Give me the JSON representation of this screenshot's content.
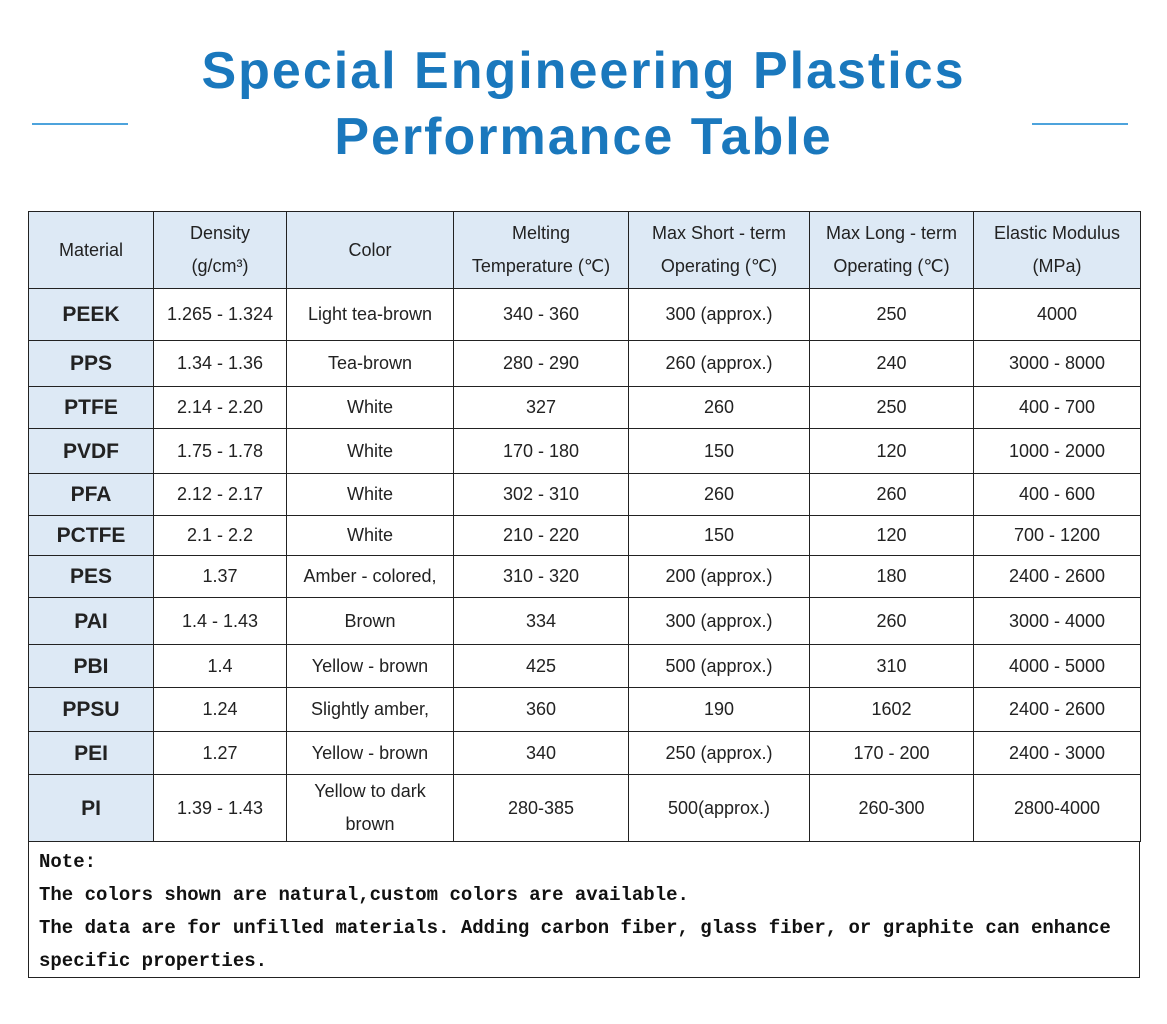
{
  "header": {
    "title_lines": [
      "Special Engineering Plastics",
      "Performance Table"
    ]
  },
  "table": {
    "columns": [
      [
        "Material"
      ],
      [
        "Density",
        "(g/cm³)"
      ],
      [
        "Color"
      ],
      [
        "Melting",
        "Temperature (℃)"
      ],
      [
        "Max Short - term",
        "Operating (℃)"
      ],
      [
        "Max Long - term",
        "Operating (℃)"
      ],
      [
        "Elastic Modulus",
        "(MPa)"
      ]
    ],
    "rows": [
      [
        "PEEK",
        "1.265 - 1.324",
        "Light tea-brown",
        "340 - 360",
        "300 (approx.)",
        "250",
        "4000"
      ],
      [
        "PPS",
        "1.34 - 1.36",
        "Tea-brown",
        "280 - 290",
        "260 (approx.)",
        "240",
        "3000 - 8000"
      ],
      [
        "PTFE",
        "2.14 - 2.20",
        "White",
        "327",
        "260",
        "250",
        "400 - 700"
      ],
      [
        "PVDF",
        "1.75 - 1.78",
        "White",
        "170 - 180",
        "150",
        "120",
        "1000 - 2000"
      ],
      [
        "PFA",
        "2.12 - 2.17",
        "White",
        "302 - 310",
        "260",
        "260",
        "400 - 600"
      ],
      [
        "PCTFE",
        "2.1 - 2.2",
        "White",
        "210 - 220",
        "150",
        "120",
        "700 - 1200"
      ],
      [
        "PES",
        "1.37",
        "Amber - colored,",
        "310 - 320",
        "200 (approx.)",
        "180",
        "2400 - 2600"
      ],
      [
        "PAI",
        "1.4 - 1.43",
        "Brown",
        "334",
        "300 (approx.)",
        "260",
        "3000 - 4000"
      ],
      [
        "PBI",
        "1.4",
        "Yellow - brown",
        "425",
        "500 (approx.)",
        "310",
        "4000 - 5000"
      ],
      [
        "PPSU",
        "1.24",
        "Slightly amber,",
        "360",
        "190",
        "1602",
        "2400 - 2600"
      ],
      [
        "PEI",
        "1.27",
        "Yellow - brown",
        "340",
        "250 (approx.)",
        "170 - 200",
        "2400 - 3000"
      ],
      [
        "PI",
        "1.39 - 1.43",
        "Yellow to dark brown",
        "280-385",
        "500(approx.)",
        "260-300",
        "2800-4000"
      ]
    ]
  },
  "notes": [
    "Note:",
    "The colors shown are natural,custom colors are available.",
    "The data are for unfilled materials. Adding carbon fiber, glass fiber, or graphite can enhance specific properties."
  ]
}
